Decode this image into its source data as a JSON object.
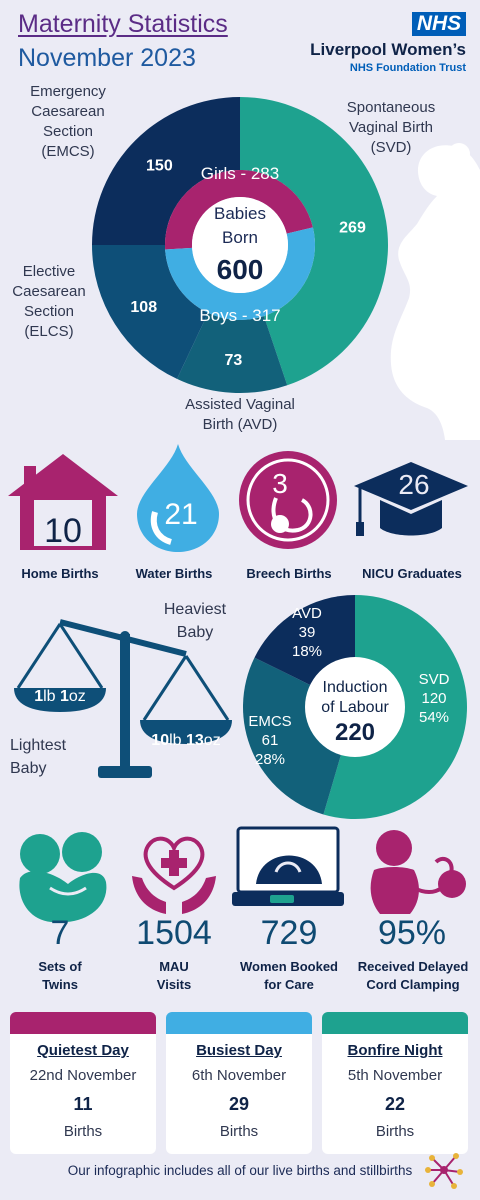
{
  "header": {
    "title_line1": "Maternity Statistics",
    "title_line2": "November 2023",
    "nhs_logo": "NHS",
    "org_name": "Liverpool Women’s",
    "org_sub": "NHS Foundation Trust"
  },
  "chart_data": [
    {
      "type": "pie",
      "title": "Babies Born",
      "total": 600,
      "outer_ring": [
        {
          "name": "Spontaneous Vaginal Birth (SVD)",
          "value": 269,
          "color": "#1ea28f"
        },
        {
          "name": "Assisted Vaginal Birth (AVD)",
          "value": 73,
          "color": "#12617a"
        },
        {
          "name": "Elective Caesarean Section (ELCS)",
          "value": 108,
          "color": "#0e4f78"
        },
        {
          "name": "Emergency Caesarean Section (EMCS)",
          "value": 150,
          "color": "#0c2d5c"
        }
      ],
      "inner_ring": [
        {
          "name": "Girls",
          "value": 283,
          "color": "#a8236e"
        },
        {
          "name": "Boys",
          "value": 317,
          "color": "#40aee3"
        }
      ]
    },
    {
      "type": "pie",
      "title": "Induction of Labour",
      "total": 220,
      "slices": [
        {
          "name": "SVD",
          "value": 120,
          "pct": "54%",
          "color": "#1ea28f"
        },
        {
          "name": "EMCS",
          "value": 61,
          "pct": "28%",
          "color": "#12617a"
        },
        {
          "name": "AVD",
          "value": 39,
          "pct": "18%",
          "color": "#0c2d5c"
        }
      ]
    }
  ],
  "donut": {
    "center_line1": "Babies",
    "center_line2": "Born",
    "center_total": "600",
    "girls_label": "Girls - 283",
    "boys_label": "Boys - 317",
    "emcs_value": "150",
    "svd_value": "269",
    "elcs_value": "108",
    "avd_value": "73",
    "emcs_label": [
      "Emergency",
      "Caesarean",
      "Section",
      "(EMCS)"
    ],
    "svd_label": [
      "Spontaneous",
      "Vaginal Birth",
      "(SVD)"
    ],
    "elcs_label": [
      "Elective",
      "Caesarean",
      "Section",
      "(ELCS)"
    ],
    "avd_label": [
      "Assisted Vaginal",
      "Birth (AVD)"
    ]
  },
  "icons_row": [
    {
      "value": "10",
      "label": "Home Births",
      "icon": "house-icon"
    },
    {
      "value": "21",
      "label": "Water Births",
      "icon": "water-drop-icon"
    },
    {
      "value": "3",
      "label": "Breech Births",
      "icon": "fetus-icon"
    },
    {
      "value": "26",
      "label": "NICU Graduates",
      "icon": "graduation-cap-icon"
    }
  ],
  "scales": {
    "heaviest_label": [
      "Heaviest",
      "Baby"
    ],
    "lightest_label": [
      "Lightest",
      "Baby"
    ],
    "light_weight": {
      "lb": "1",
      "lb_unit": "lb",
      "oz": "1",
      "oz_unit": "oz"
    },
    "heavy_weight": {
      "lb": "10",
      "lb_unit": "lb",
      "oz": "13",
      "oz_unit": "oz"
    }
  },
  "induction": {
    "center_line1": "Induction",
    "center_line2": "of Labour",
    "center_total": "220",
    "svd": [
      "SVD",
      "120",
      "54%"
    ],
    "emcs": [
      "EMCS",
      "61",
      "28%"
    ],
    "avd": [
      "AVD",
      "39",
      "18%"
    ]
  },
  "stats_row": [
    {
      "value": "7",
      "label": [
        "Sets of",
        "Twins"
      ],
      "icon": "twins-icon"
    },
    {
      "value": "1504",
      "label": [
        "MAU",
        "Visits"
      ],
      "icon": "heart-hands-icon"
    },
    {
      "value": "729",
      "label": [
        "Women Booked",
        "for Care"
      ],
      "icon": "ultrasound-icon"
    },
    {
      "value": "95%",
      "label": [
        "Received Delayed",
        "Cord Clamping"
      ],
      "icon": "baby-cord-icon"
    }
  ],
  "cards": [
    {
      "title": "Quietest Day",
      "date": "22nd November",
      "value": "11",
      "unit": "Births",
      "color": "#a8236e"
    },
    {
      "title": "Busiest Day",
      "date": "6th November",
      "value": "29",
      "unit": "Births",
      "color": "#40aee3"
    },
    {
      "title": "Bonfire Night",
      "date": "5th November",
      "value": "22",
      "unit": "Births",
      "color": "#1ea28f"
    }
  ],
  "footer": "Our infographic includes all of our live births and stillbirths"
}
